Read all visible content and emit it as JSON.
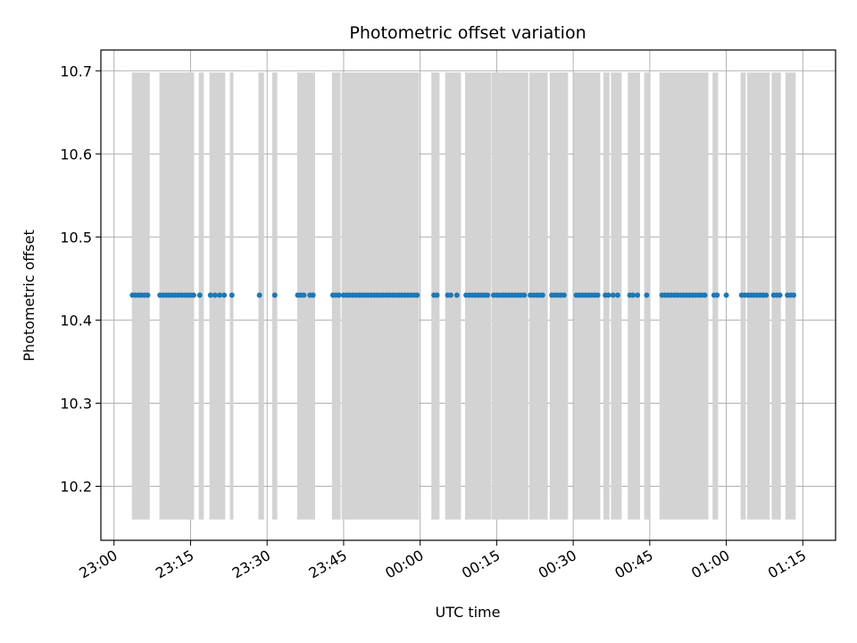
{
  "chart_data": {
    "type": "scatter",
    "title": "Photometric offset variation",
    "xlabel": "UTC time",
    "ylabel": "Photometric offset",
    "x_tick_labels": [
      "23:00",
      "23:15",
      "23:30",
      "23:45",
      "00:00",
      "00:15",
      "00:30",
      "00:45",
      "01:00",
      "01:15"
    ],
    "x_tick_hours": [
      23.0,
      23.25,
      23.5,
      23.75,
      24.0,
      24.25,
      24.5,
      24.75,
      25.0,
      25.25
    ],
    "xlim_hours": [
      22.957,
      25.357
    ],
    "y_ticks": [
      10.2,
      10.3,
      10.4,
      10.5,
      10.6,
      10.7
    ],
    "y_tick_labels": [
      "10.2",
      "10.3",
      "10.4",
      "10.5",
      "10.6",
      "10.7"
    ],
    "ylim": [
      10.135,
      10.725
    ],
    "grid": true,
    "series_color": "#1f77b4",
    "band_color": "#d3d3d3",
    "band_y_range": [
      10.16,
      10.698
    ],
    "shaded_intervals_hours": [
      [
        23.0583,
        23.1167
      ],
      [
        23.1483,
        23.2617
      ],
      [
        23.2767,
        23.2933
      ],
      [
        23.3117,
        23.3633
      ],
      [
        23.3783,
        23.39
      ],
      [
        23.4717,
        23.49
      ],
      [
        23.5167,
        23.5333
      ],
      [
        23.5983,
        23.6567
      ],
      [
        23.7117,
        23.74
      ],
      [
        23.7433,
        23.9967
      ],
      [
        24.0367,
        24.0633
      ],
      [
        24.0817,
        24.1333
      ],
      [
        24.1467,
        24.2317
      ],
      [
        24.2333,
        24.3533
      ],
      [
        24.3567,
        24.4167
      ],
      [
        24.4233,
        24.4833
      ],
      [
        24.5017,
        24.5883
      ],
      [
        24.5983,
        24.6183
      ],
      [
        24.6233,
        24.6583
      ],
      [
        24.6783,
        24.7183
      ],
      [
        24.7317,
        24.75
      ],
      [
        24.7817,
        24.9417
      ],
      [
        24.955,
        24.9733
      ],
      [
        25.0467,
        25.0633
      ],
      [
        25.0683,
        25.1417
      ],
      [
        25.1483,
        25.1783
      ],
      [
        25.1933,
        25.2267
      ]
    ],
    "y_value": 10.43,
    "x_hours": [
      23.06,
      23.07,
      23.08,
      23.09,
      23.1,
      23.11,
      23.15,
      23.16,
      23.17,
      23.18,
      23.19,
      23.2,
      23.21,
      23.22,
      23.23,
      23.24,
      23.25,
      23.26,
      23.28,
      23.315,
      23.33,
      23.345,
      23.36,
      23.385,
      23.475,
      23.525,
      23.6,
      23.61,
      23.62,
      23.64,
      23.65,
      23.715,
      23.725,
      23.735,
      23.75,
      23.76,
      23.77,
      23.78,
      23.79,
      23.8,
      23.81,
      23.82,
      23.83,
      23.84,
      23.85,
      23.86,
      23.87,
      23.88,
      23.89,
      23.9,
      23.91,
      23.92,
      23.93,
      23.94,
      23.95,
      23.96,
      23.97,
      23.98,
      23.99,
      24.045,
      24.055,
      24.09,
      24.1,
      24.12,
      24.15,
      24.16,
      24.17,
      24.18,
      24.19,
      24.2,
      24.21,
      24.22,
      24.24,
      24.25,
      24.26,
      24.27,
      24.28,
      24.29,
      24.3,
      24.31,
      24.32,
      24.33,
      24.34,
      24.36,
      24.37,
      24.38,
      24.39,
      24.4,
      24.43,
      24.44,
      24.45,
      24.46,
      24.47,
      24.51,
      24.52,
      24.53,
      24.54,
      24.55,
      24.56,
      24.57,
      24.58,
      24.605,
      24.615,
      24.63,
      24.645,
      24.685,
      24.695,
      24.71,
      24.74,
      24.83,
      24.79,
      24.8,
      24.81,
      24.82,
      24.84,
      24.85,
      24.86,
      24.87,
      24.88,
      24.89,
      24.9,
      24.91,
      24.92,
      24.93,
      24.96,
      24.97,
      25.0,
      25.05,
      25.06,
      25.07,
      25.08,
      25.09,
      25.1,
      25.11,
      25.12,
      25.13,
      25.155,
      25.165,
      25.175,
      25.2,
      25.21,
      25.22
    ]
  }
}
